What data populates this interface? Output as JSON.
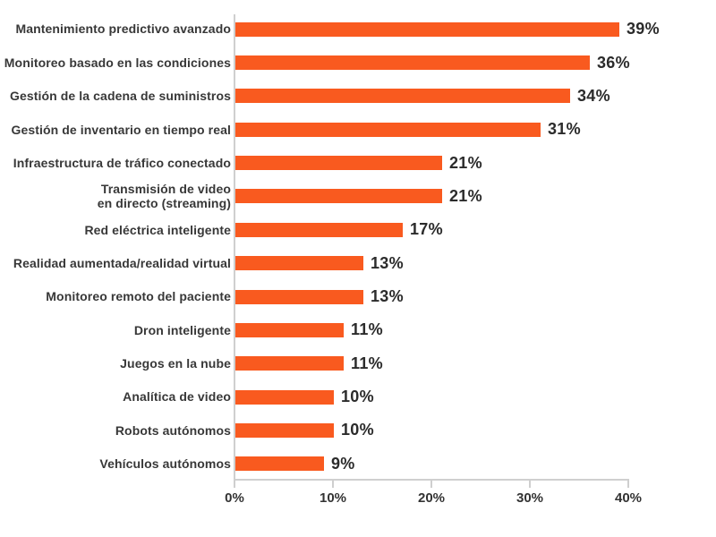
{
  "chart_data": {
    "type": "bar",
    "orientation": "horizontal",
    "categories": [
      "Mantenimiento predictivo avanzado",
      "Monitoreo basado en las condiciones",
      "Gestión de la cadena de suministros",
      "Gestión de inventario en tiempo real",
      "Infraestructura de tráfico conectado",
      "Transmisión de video\nen directo (streaming)",
      "Red eléctrica inteligente",
      "Realidad aumentada/realidad virtual",
      "Monitoreo remoto del paciente",
      "Dron inteligente",
      "Juegos en la nube",
      "Analítica de video",
      "Robots autónomos",
      "Vehículos autónomos"
    ],
    "values": [
      39,
      36,
      34,
      31,
      21,
      21,
      17,
      13,
      13,
      11,
      11,
      10,
      10,
      9
    ],
    "value_labels": [
      "39%",
      "36%",
      "34%",
      "31%",
      "21%",
      "21%",
      "17%",
      "13%",
      "13%",
      "11%",
      "11%",
      "10%",
      "10%",
      "9%"
    ],
    "x_ticks": [
      "0%",
      "10%",
      "20%",
      "30%",
      "40%"
    ],
    "xlim": [
      0,
      40
    ],
    "grid": false,
    "legend": false,
    "colors": {
      "bar": "#F95A1F",
      "category_label": "#383838",
      "value_label": "#2B2B2B",
      "axis_line": "#CFCFCF",
      "tick_label": "#333333",
      "background": "#FFFFFF"
    }
  }
}
